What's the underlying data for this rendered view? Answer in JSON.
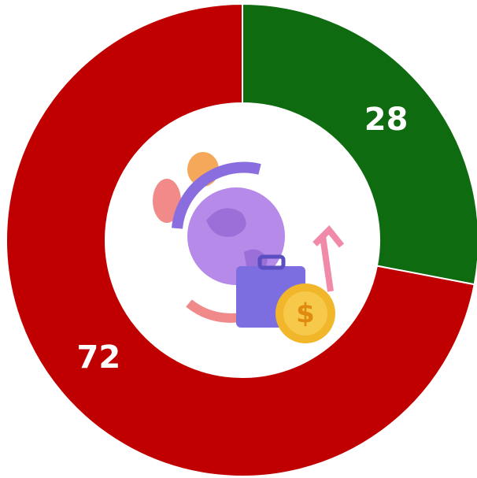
{
  "chart_data": {
    "type": "pie",
    "donut": true,
    "categories": [
      null,
      null
    ],
    "values": [
      28,
      72
    ],
    "colors": [
      "#0f6b0f",
      "#c00000"
    ]
  }
}
